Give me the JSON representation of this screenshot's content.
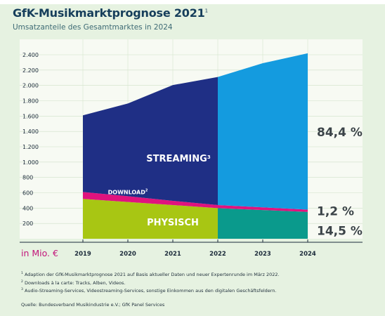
{
  "header": {
    "title": "GfK-Musikmarktprognose 2021",
    "title_footnote": "1",
    "subtitle": "Umsatzanteile des Gesamtmarktes in 2024"
  },
  "colors": {
    "background": "#e6f2e1",
    "plot_background": "#f7faf3",
    "streaming_dark": "#1f2f85",
    "streaming_light": "#149bdf",
    "download": "#e0137e",
    "physisch": "#a8c613",
    "physisch_forecast": "#0a9a8c",
    "unit_label": "#c2157a"
  },
  "chart_data": {
    "type": "area",
    "stacked": true,
    "x": [
      "2019",
      "2020",
      "2021",
      "2022",
      "2023",
      "2024"
    ],
    "ylim": [
      0,
      2400
    ],
    "y_ticks": [
      "200",
      "400",
      "600",
      "800",
      "1.000",
      "1.200",
      "1.400",
      "1.600",
      "1.800",
      "2.000",
      "2.200",
      "2.400"
    ],
    "unit_label": "in Mio. €",
    "forecast_from": "2022",
    "series": [
      {
        "name": "PHYSISCH",
        "values": [
          520,
          480,
          440,
          400,
          375,
          350
        ]
      },
      {
        "name": "DOWNLOAD",
        "footnote": "2",
        "values": [
          90,
          75,
          55,
          40,
          35,
          30
        ]
      },
      {
        "name": "STREAMING",
        "footnote": "3",
        "values": [
          1000,
          1210,
          1510,
          1670,
          1880,
          2040
        ]
      }
    ],
    "shares_2024": [
      {
        "series": "STREAMING",
        "label": "84,4 %"
      },
      {
        "series": "DOWNLOAD",
        "label": "1,2 %"
      },
      {
        "series": "PHYSISCH",
        "label": "14,5 %"
      }
    ],
    "grid": true,
    "legend": "none"
  },
  "footnotes": [
    {
      "mark": "1",
      "text": "Adaption der GfK-Musikmarktprognose 2021 auf Basis aktueller Daten und neuer Expertenrunde im März 2022."
    },
    {
      "mark": "2",
      "text": "Downloads à la carte: Tracks, Alben, Videos."
    },
    {
      "mark": "3",
      "text": "Audio-Streaming-Services, Videostreaming-Services, sonstige Einkommen aus den digitalen Geschäftsfeldern."
    }
  ],
  "source": "Quelle: Bundesverband Musikindustrie e.V.; GfK Panel Services"
}
